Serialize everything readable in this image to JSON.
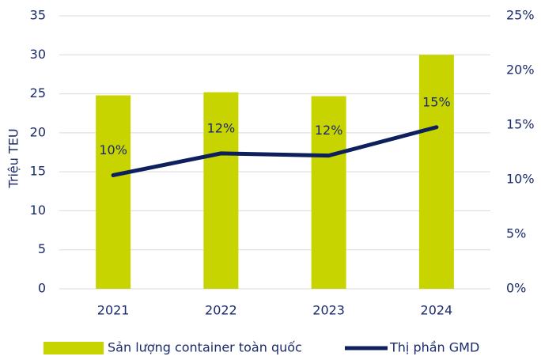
{
  "chart_data": {
    "type": "bar_line",
    "y_label": "Triệu TEU",
    "categories": [
      "2021",
      "2022",
      "2023",
      "2024"
    ],
    "series": [
      {
        "name": "Sản lượng container toàn quốc",
        "type": "bar",
        "color": "#c8d400",
        "values": [
          24.8,
          25.2,
          24.7,
          30.0
        ]
      },
      {
        "name": "Thị phần GMD",
        "type": "line",
        "color": "#0d1f5c",
        "axis": "y2",
        "values": [
          10.4,
          12.4,
          12.2,
          14.8
        ],
        "value_labels": [
          "10%",
          "12%",
          "12%",
          "15%"
        ]
      }
    ],
    "ylim": [
      0,
      35
    ],
    "yticks": [
      0,
      5,
      10,
      15,
      20,
      25,
      30,
      35
    ],
    "y2lim": [
      0,
      25
    ],
    "y2ticks": [
      {
        "value": 0,
        "label": "0%"
      },
      {
        "value": 5,
        "label": "5%"
      },
      {
        "value": 10,
        "label": "10%"
      },
      {
        "value": 15,
        "label": "15%"
      },
      {
        "value": 20,
        "label": "20%"
      },
      {
        "value": 25,
        "label": "25%"
      }
    ],
    "grid": true,
    "legend": "bottom"
  }
}
